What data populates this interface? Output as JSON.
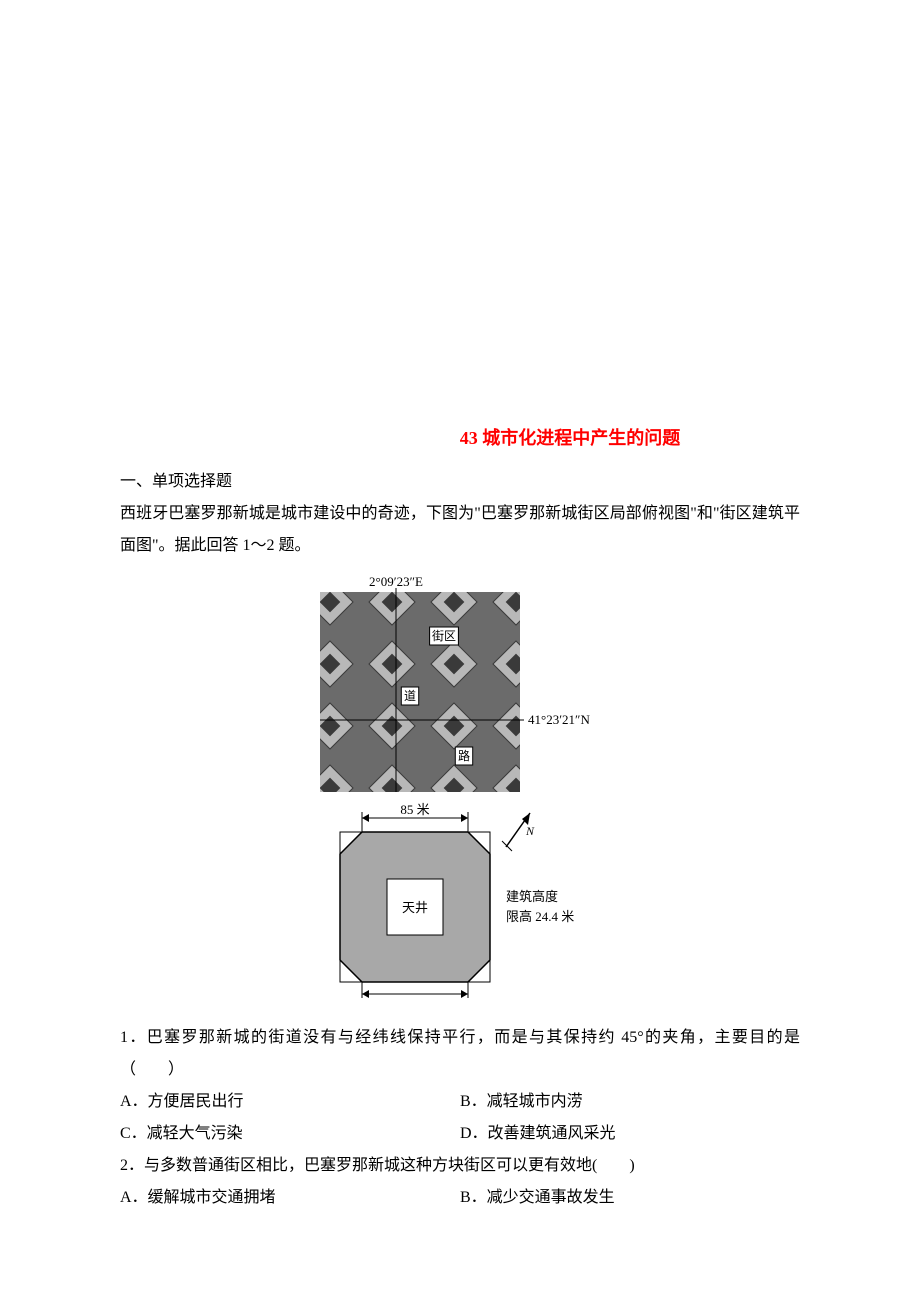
{
  "title": "43 城市化进程中产生的问题",
  "section_heading": "一、单项选择题",
  "intro": "西班牙巴塞罗那新城是城市建设中的奇迹，下图为\"巴塞罗那新城街区局部俯视图\"和\"街区建筑平面图\"。据此回答 1～2 题。",
  "figure": {
    "lon_label": "2°09′23″E",
    "lat_label": "41°23′21″N",
    "block_label_1": "街区",
    "block_label_2": "道",
    "block_label_3": "路",
    "width_label": "85 米",
    "courtyard_label": "天井",
    "height_label_1": "建筑高度",
    "height_label_2": "限高 24.4 米",
    "north_label": "N",
    "colors": {
      "aerial_bg": "#6b6b6b",
      "aerial_block_light": "#b8b8b8",
      "aerial_block_dark": "#3a3a3a",
      "label_box_fill": "#ffffff",
      "label_box_stroke": "#000000",
      "plan_fill": "#a8a8a8",
      "plan_stroke": "#000000",
      "courtyard_fill": "#ffffff",
      "axis_color": "#000000",
      "text_color": "#000000"
    },
    "font_size_label": 13,
    "font_size_small": 12
  },
  "q1": {
    "stem": "1．巴塞罗那新城的街道没有与经纬线保持平行，而是与其保持约 45°的夹角，主要目的是（　　）",
    "optA": "A．方便居民出行",
    "optB": "B．减轻城市内涝",
    "optC": "C．减轻大气污染",
    "optD": "D．改善建筑通风采光"
  },
  "q2": {
    "stem": "2．与多数普通街区相比，巴塞罗那新城这种方块街区可以更有效地(　　)",
    "optA": "A．缓解城市交通拥堵",
    "optB": "B．减少交通事故发生"
  }
}
